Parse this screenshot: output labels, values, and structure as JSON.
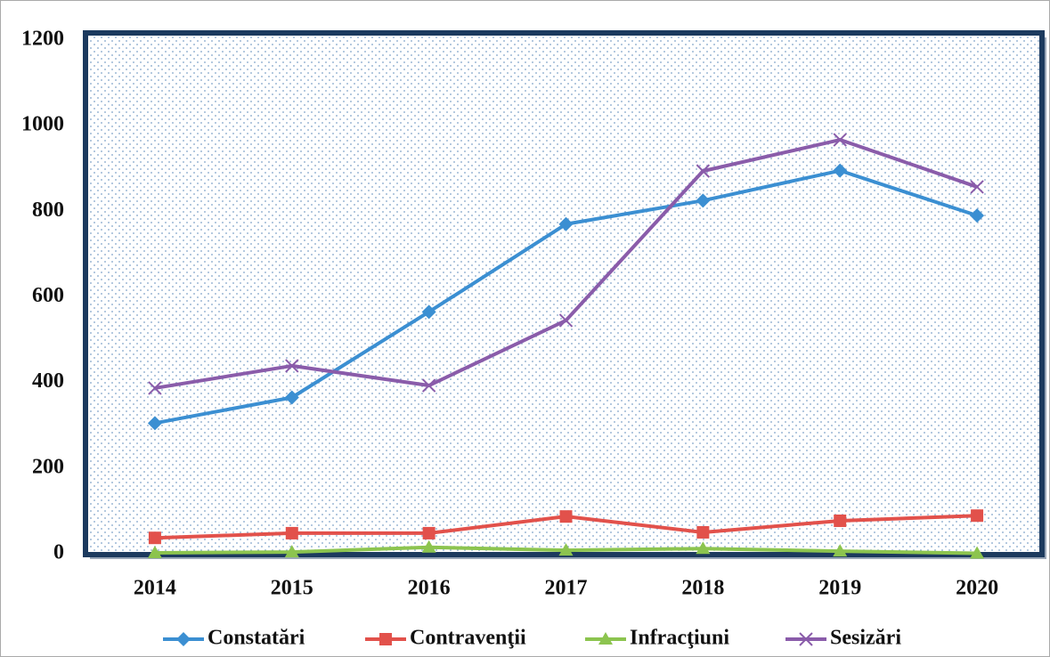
{
  "chart_data": {
    "type": "line",
    "categories": [
      "2014",
      "2015",
      "2016",
      "2017",
      "2018",
      "2019",
      "2020"
    ],
    "series": [
      {
        "name": "Constatări",
        "color": "#3b8fd2",
        "marker": "diamond",
        "values": [
          305,
          365,
          565,
          770,
          825,
          895,
          790
        ]
      },
      {
        "name": "Contravenţii",
        "color": "#e2514b",
        "marker": "square",
        "values": [
          37,
          48,
          48,
          87,
          50,
          77,
          89
        ]
      },
      {
        "name": "Infracţiuni",
        "color": "#8cc44f",
        "marker": "triangle",
        "values": [
          2,
          4,
          15,
          8,
          12,
          6,
          1
        ]
      },
      {
        "name": "Sesizări",
        "color": "#8a5caa",
        "marker": "x",
        "values": [
          387,
          439,
          393,
          545,
          894,
          967,
          857
        ]
      }
    ],
    "ylim": [
      0,
      1200
    ],
    "yticks": [
      0,
      200,
      400,
      600,
      800,
      1000,
      1200
    ],
    "legend": "bottom"
  }
}
